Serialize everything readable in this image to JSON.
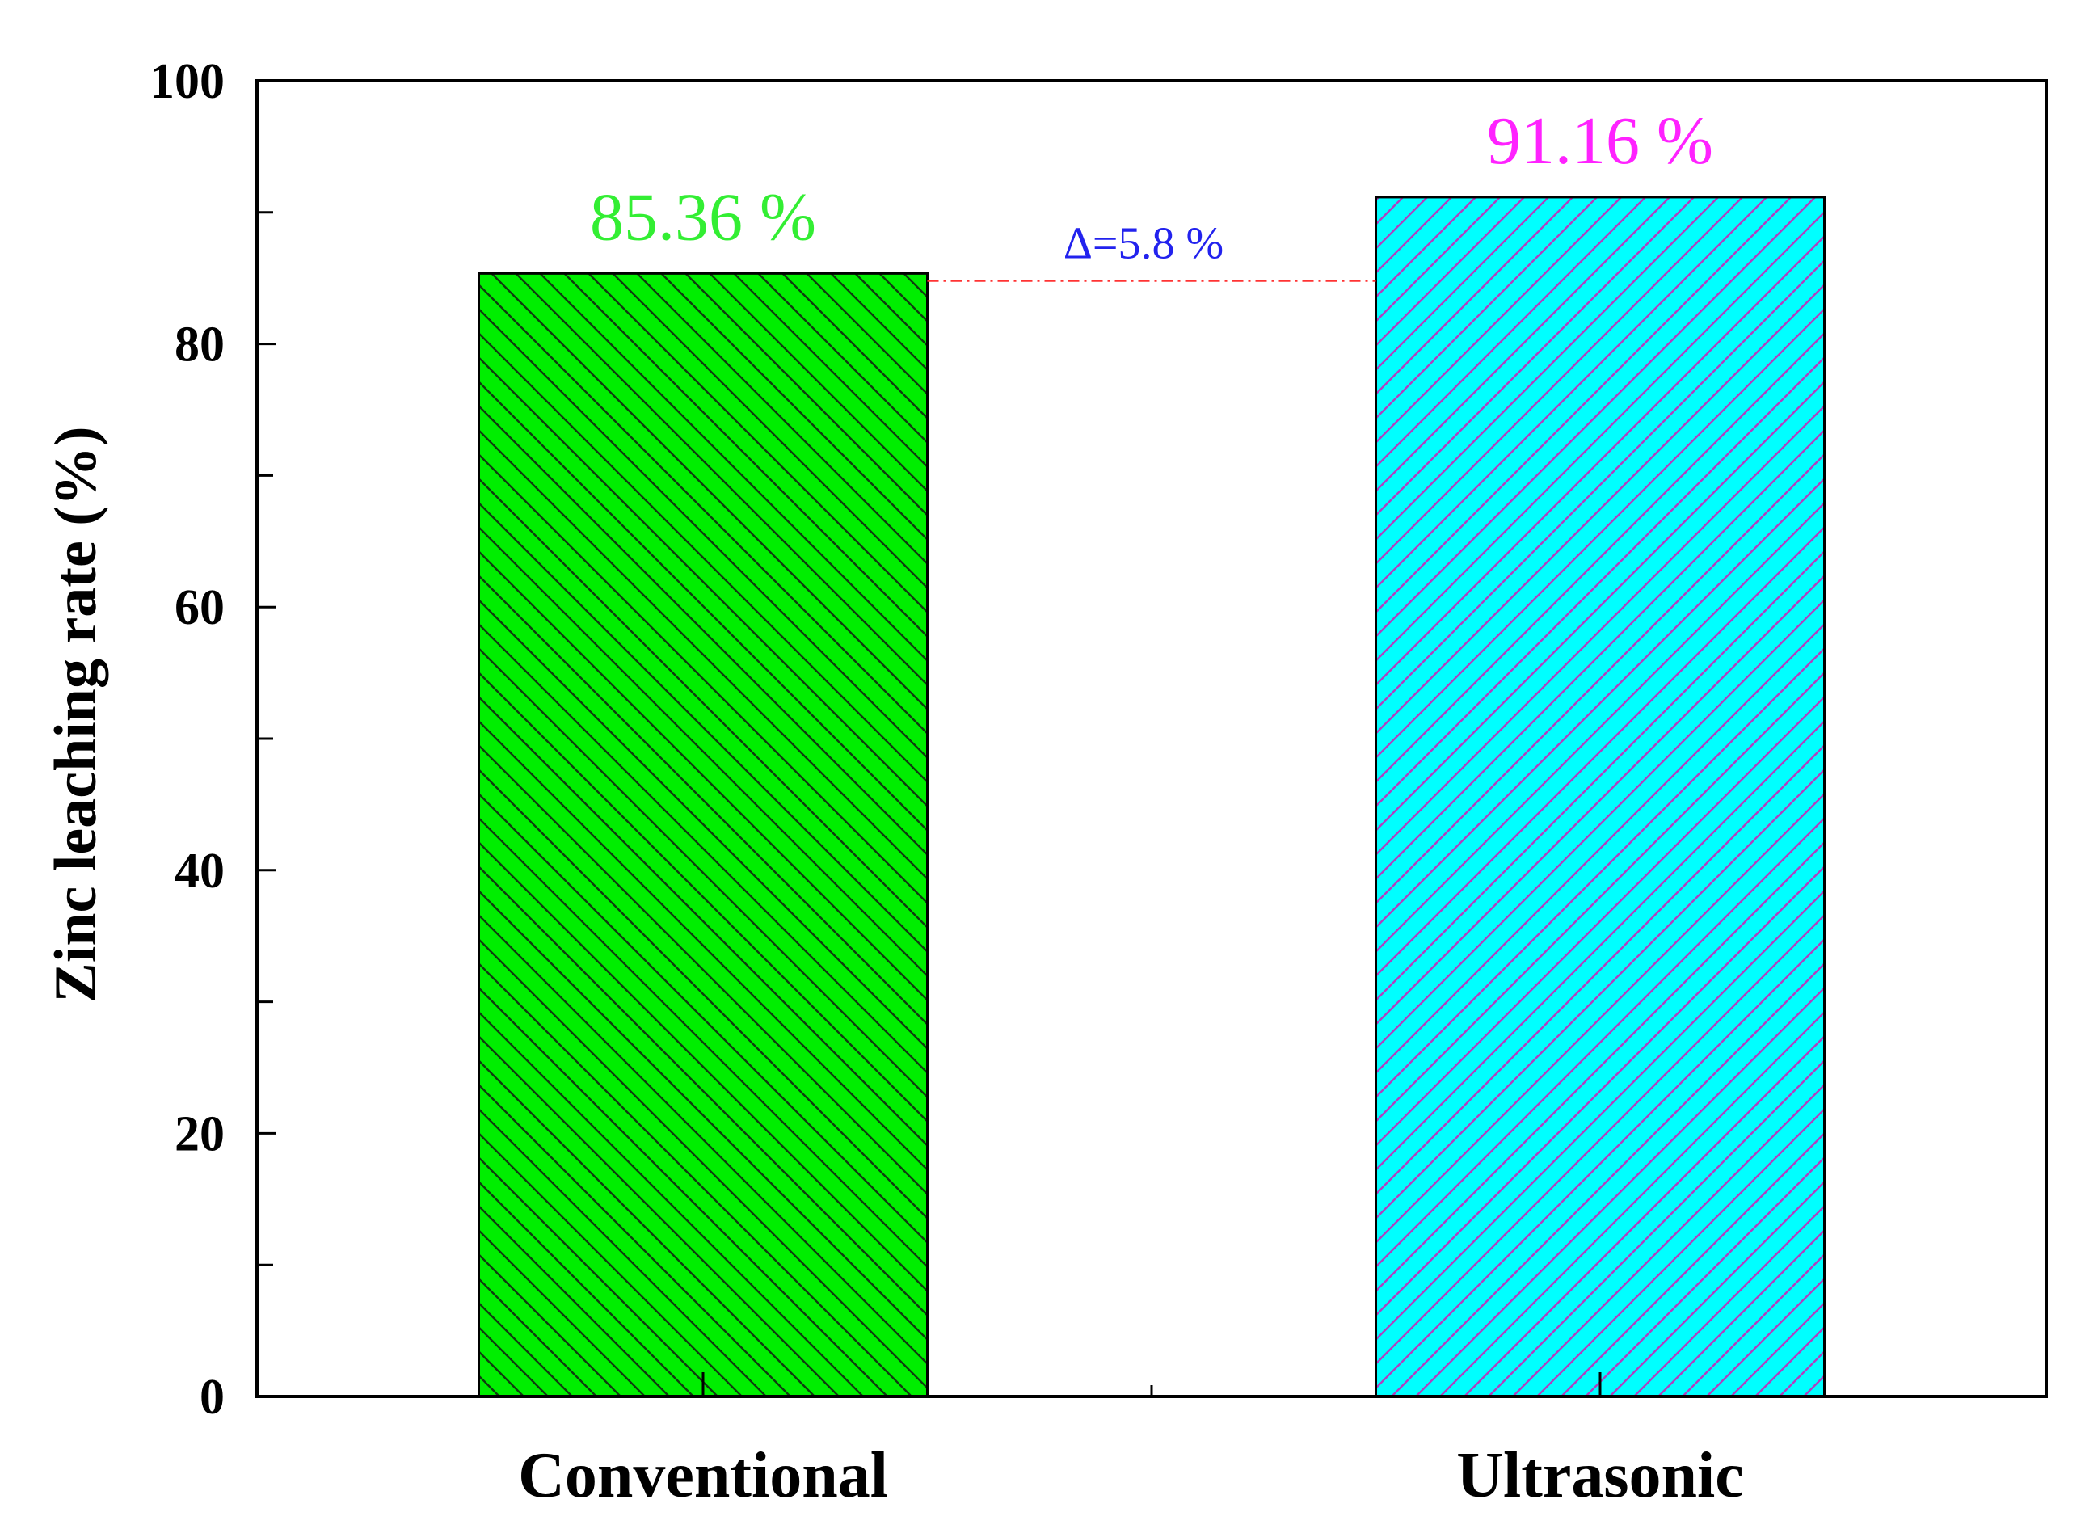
{
  "chart_data": {
    "type": "bar",
    "categories": [
      "Conventional",
      "Ultrasonic"
    ],
    "values": [
      85.36,
      91.16
    ],
    "data_labels": [
      "85.36 %",
      "91.16 %"
    ],
    "bar_colors": [
      "#00ee00",
      "#00ffff"
    ],
    "hatch_colors": [
      "#0f3d0f",
      "#b040c0"
    ],
    "hatch_directions": [
      "backslash",
      "slash"
    ],
    "label_colors": [
      "#33ee33",
      "#ff22ff"
    ],
    "title": "",
    "xlabel": "",
    "ylabel": "Zinc leaching rate (%)",
    "ylim": [
      0,
      100
    ],
    "yticks": [
      0,
      20,
      40,
      60,
      80,
      100
    ],
    "grid": false,
    "annotation": {
      "text": "Δ=5.8 %",
      "color": "#2222ee",
      "line_color": "#ff3333",
      "line_value": 84.8
    }
  }
}
